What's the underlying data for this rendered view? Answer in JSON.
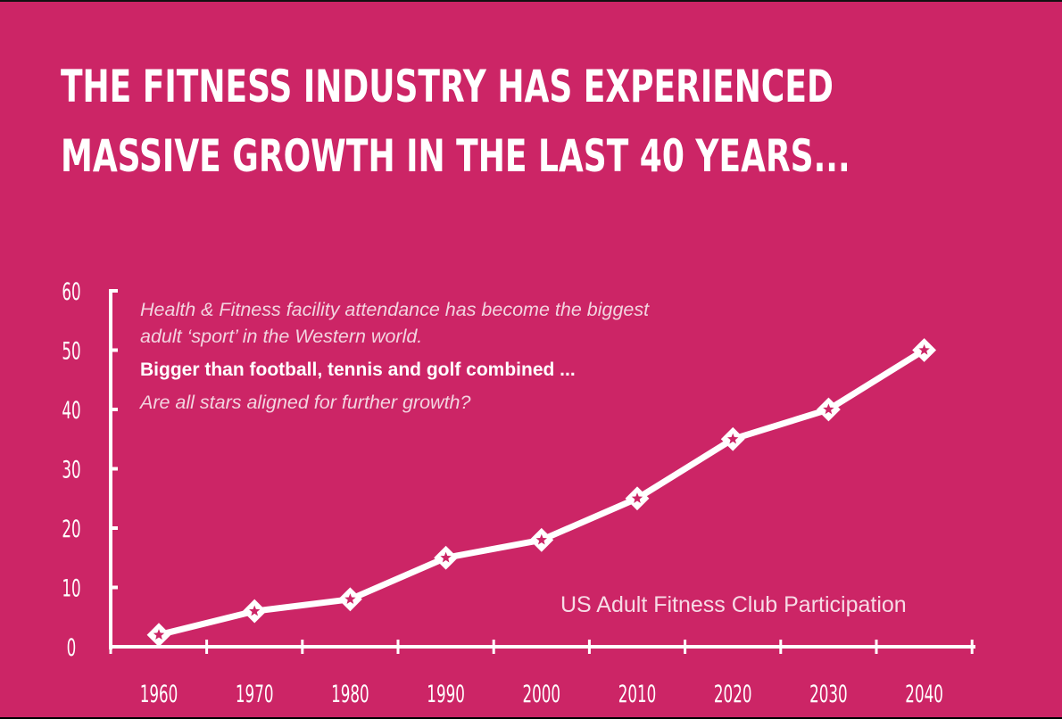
{
  "title": {
    "line1": "THE FITNESS INDUSTRY HAS EXPERIENCED",
    "line2": "MASSIVE GROWTH IN THE LAST 40 YEARS..."
  },
  "note": {
    "line1": "Health & Fitness facility attendance has become the biggest",
    "line2": "adult ‘sport’ in the Western world.",
    "line3": "Bigger than football, tennis and golf combined ...",
    "line4": "Are all stars aligned for further growth?"
  },
  "colors": {
    "background": "#cc2566",
    "line": "#ffffff",
    "marker_star": "#cc2566"
  },
  "chart_data": {
    "type": "line",
    "title": "",
    "xlabel": "",
    "ylabel": "",
    "annotation": "US Adult Fitness Club Participation",
    "categories": [
      "1960",
      "1970",
      "1980",
      "1990",
      "2000",
      "2010",
      "2020",
      "2030",
      "2040"
    ],
    "series": [
      {
        "values": [
          2,
          6,
          8,
          15,
          18,
          25,
          35,
          40,
          50
        ]
      }
    ],
    "y_ticks": [
      0,
      10,
      20,
      30,
      40,
      50,
      60
    ],
    "ylim": [
      0,
      60
    ],
    "grid": false,
    "legend": "none",
    "marker": "diamond with star"
  }
}
